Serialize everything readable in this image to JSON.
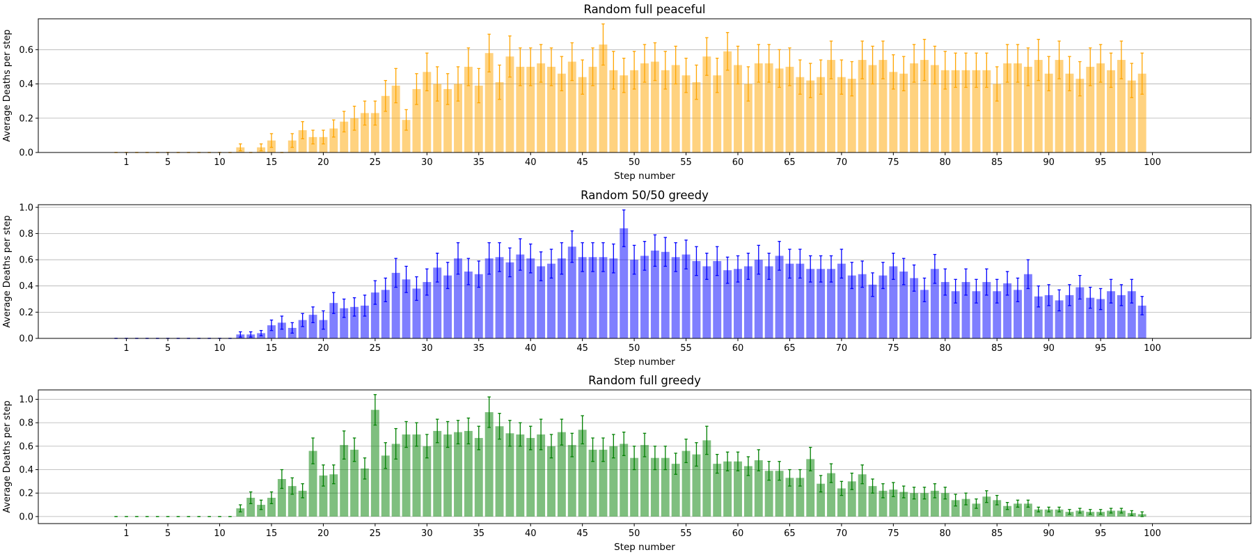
{
  "chart_data": [
    {
      "type": "bar",
      "title": "Random full peaceful",
      "xlabel": "Step number",
      "ylabel": "Average Deaths per step",
      "color": "#ffa500",
      "ylim": [
        0,
        0.78
      ],
      "yticks": [
        0.0,
        0.2,
        0.4,
        0.6
      ],
      "ytick_labels": [
        "0.0",
        "0.2",
        "0.4",
        "0.6"
      ],
      "xlim": [
        -7.5,
        109.5
      ],
      "xticks": [
        1,
        5,
        10,
        15,
        20,
        25,
        30,
        35,
        40,
        45,
        50,
        55,
        60,
        65,
        70,
        75,
        80,
        85,
        90,
        95,
        100
      ],
      "xtick_labels": [
        "1",
        "5",
        "10",
        "15",
        "20",
        "25",
        "30",
        "35",
        "40",
        "45",
        "50",
        "55",
        "60",
        "65",
        "70",
        "75",
        "80",
        "85",
        "90",
        "95",
        "100"
      ],
      "grid": "y",
      "x": [
        0,
        1,
        2,
        3,
        4,
        5,
        6,
        7,
        8,
        9,
        10,
        11,
        12,
        13,
        14,
        15,
        16,
        17,
        18,
        19,
        20,
        21,
        22,
        23,
        24,
        25,
        26,
        27,
        28,
        29,
        30,
        31,
        32,
        33,
        34,
        35,
        36,
        37,
        38,
        39,
        40,
        41,
        42,
        43,
        44,
        45,
        46,
        47,
        48,
        49,
        50,
        51,
        52,
        53,
        54,
        55,
        56,
        57,
        58,
        59,
        60,
        61,
        62,
        63,
        64,
        65,
        66,
        67,
        68,
        69,
        70,
        71,
        72,
        73,
        74,
        75,
        76,
        77,
        78,
        79,
        80,
        81,
        82,
        83,
        84,
        85,
        86,
        87,
        88,
        89,
        90,
        91,
        92,
        93,
        94,
        95,
        96,
        97,
        98,
        99
      ],
      "values": [
        0,
        0,
        0,
        0,
        0,
        0,
        0,
        0,
        0,
        0,
        0,
        0,
        0.03,
        0,
        0.03,
        0.07,
        0,
        0.07,
        0.13,
        0.09,
        0.09,
        0.14,
        0.18,
        0.2,
        0.23,
        0.23,
        0.33,
        0.39,
        0.19,
        0.37,
        0.47,
        0.4,
        0.37,
        0.4,
        0.5,
        0.39,
        0.58,
        0.41,
        0.56,
        0.5,
        0.5,
        0.52,
        0.5,
        0.46,
        0.53,
        0.44,
        0.5,
        0.63,
        0.48,
        0.45,
        0.48,
        0.52,
        0.53,
        0.48,
        0.51,
        0.45,
        0.41,
        0.56,
        0.45,
        0.59,
        0.51,
        0.4,
        0.52,
        0.52,
        0.49,
        0.5,
        0.44,
        0.42,
        0.44,
        0.54,
        0.44,
        0.43,
        0.54,
        0.51,
        0.54,
        0.47,
        0.46,
        0.52,
        0.54,
        0.51,
        0.48,
        0.48,
        0.48,
        0.48,
        0.48,
        0.4,
        0.52,
        0.52,
        0.5,
        0.54,
        0.46,
        0.54,
        0.46,
        0.43,
        0.5,
        0.52,
        0.48,
        0.54,
        0.42,
        0.46
      ],
      "errors": [
        0,
        0,
        0,
        0,
        0,
        0,
        0,
        0,
        0,
        0,
        0,
        0,
        0.02,
        0,
        0.02,
        0.04,
        0,
        0.04,
        0.05,
        0.04,
        0.04,
        0.05,
        0.06,
        0.07,
        0.07,
        0.07,
        0.09,
        0.1,
        0.06,
        0.09,
        0.11,
        0.1,
        0.09,
        0.1,
        0.11,
        0.1,
        0.11,
        0.1,
        0.12,
        0.11,
        0.11,
        0.11,
        0.11,
        0.1,
        0.11,
        0.1,
        0.11,
        0.12,
        0.11,
        0.1,
        0.11,
        0.11,
        0.11,
        0.11,
        0.11,
        0.1,
        0.1,
        0.11,
        0.1,
        0.11,
        0.11,
        0.1,
        0.11,
        0.11,
        0.11,
        0.11,
        0.1,
        0.1,
        0.1,
        0.11,
        0.1,
        0.1,
        0.11,
        0.11,
        0.11,
        0.1,
        0.1,
        0.11,
        0.12,
        0.11,
        0.11,
        0.1,
        0.1,
        0.1,
        0.1,
        0.1,
        0.11,
        0.11,
        0.11,
        0.12,
        0.1,
        0.11,
        0.1,
        0.1,
        0.11,
        0.11,
        0.1,
        0.11,
        0.1,
        0.12
      ]
    },
    {
      "type": "bar",
      "title": "Random 50/50 greedy",
      "xlabel": "Step number",
      "ylabel": "Average Deaths per step",
      "color": "#0000ff",
      "ylim": [
        0,
        1.02
      ],
      "yticks": [
        0.0,
        0.2,
        0.4,
        0.6,
        0.8,
        1.0
      ],
      "ytick_labels": [
        "0.0",
        "0.2",
        "0.4",
        "0.6",
        "0.8",
        "1.0"
      ],
      "xlim": [
        -7.5,
        109.5
      ],
      "xticks": [
        1,
        5,
        10,
        15,
        20,
        25,
        30,
        35,
        40,
        45,
        50,
        55,
        60,
        65,
        70,
        75,
        80,
        85,
        90,
        95,
        100
      ],
      "xtick_labels": [
        "1",
        "5",
        "10",
        "15",
        "20",
        "25",
        "30",
        "35",
        "40",
        "45",
        "50",
        "55",
        "60",
        "65",
        "70",
        "75",
        "80",
        "85",
        "90",
        "95",
        "100"
      ],
      "grid": "y",
      "x": [
        0,
        1,
        2,
        3,
        4,
        5,
        6,
        7,
        8,
        9,
        10,
        11,
        12,
        13,
        14,
        15,
        16,
        17,
        18,
        19,
        20,
        21,
        22,
        23,
        24,
        25,
        26,
        27,
        28,
        29,
        30,
        31,
        32,
        33,
        34,
        35,
        36,
        37,
        38,
        39,
        40,
        41,
        42,
        43,
        44,
        45,
        46,
        47,
        48,
        49,
        50,
        51,
        52,
        53,
        54,
        55,
        56,
        57,
        58,
        59,
        60,
        61,
        62,
        63,
        64,
        65,
        66,
        67,
        68,
        69,
        70,
        71,
        72,
        73,
        74,
        75,
        76,
        77,
        78,
        79,
        80,
        81,
        82,
        83,
        84,
        85,
        86,
        87,
        88,
        89,
        90,
        91,
        92,
        93,
        94,
        95,
        96,
        97,
        98,
        99
      ],
      "values": [
        0,
        0,
        0,
        0,
        0,
        0,
        0,
        0,
        0,
        0,
        0,
        0,
        0.03,
        0.03,
        0.04,
        0.1,
        0.12,
        0.08,
        0.14,
        0.18,
        0.14,
        0.27,
        0.23,
        0.24,
        0.25,
        0.35,
        0.37,
        0.5,
        0.45,
        0.38,
        0.43,
        0.54,
        0.48,
        0.61,
        0.51,
        0.49,
        0.61,
        0.62,
        0.58,
        0.64,
        0.61,
        0.55,
        0.57,
        0.61,
        0.7,
        0.62,
        0.62,
        0.62,
        0.61,
        0.84,
        0.6,
        0.63,
        0.67,
        0.66,
        0.62,
        0.64,
        0.59,
        0.55,
        0.59,
        0.52,
        0.53,
        0.55,
        0.6,
        0.55,
        0.63,
        0.57,
        0.57,
        0.53,
        0.53,
        0.53,
        0.57,
        0.48,
        0.49,
        0.41,
        0.48,
        0.55,
        0.51,
        0.46,
        0.37,
        0.53,
        0.43,
        0.36,
        0.43,
        0.36,
        0.43,
        0.36,
        0.42,
        0.37,
        0.49,
        0.32,
        0.33,
        0.29,
        0.33,
        0.39,
        0.31,
        0.3,
        0.36,
        0.33,
        0.36,
        0.25
      ],
      "errors": [
        0,
        0,
        0,
        0,
        0,
        0,
        0,
        0,
        0,
        0,
        0,
        0,
        0.02,
        0.02,
        0.02,
        0.04,
        0.05,
        0.04,
        0.05,
        0.06,
        0.07,
        0.08,
        0.07,
        0.07,
        0.08,
        0.09,
        0.09,
        0.11,
        0.1,
        0.09,
        0.1,
        0.11,
        0.1,
        0.12,
        0.1,
        0.1,
        0.12,
        0.11,
        0.11,
        0.12,
        0.11,
        0.11,
        0.11,
        0.12,
        0.12,
        0.11,
        0.11,
        0.11,
        0.11,
        0.14,
        0.11,
        0.11,
        0.12,
        0.11,
        0.11,
        0.11,
        0.11,
        0.1,
        0.11,
        0.1,
        0.1,
        0.1,
        0.11,
        0.1,
        0.11,
        0.11,
        0.11,
        0.1,
        0.1,
        0.1,
        0.11,
        0.1,
        0.1,
        0.09,
        0.1,
        0.1,
        0.1,
        0.1,
        0.09,
        0.11,
        0.1,
        0.09,
        0.1,
        0.09,
        0.1,
        0.09,
        0.09,
        0.09,
        0.11,
        0.08,
        0.08,
        0.08,
        0.08,
        0.09,
        0.08,
        0.08,
        0.09,
        0.08,
        0.09,
        0.07
      ]
    },
    {
      "type": "bar",
      "title": "Random full greedy",
      "xlabel": "Step number",
      "ylabel": "Average Deaths per step",
      "color": "#008000",
      "ylim": [
        -0.06,
        1.08
      ],
      "yticks": [
        0.0,
        0.2,
        0.4,
        0.6,
        0.8,
        1.0
      ],
      "ytick_labels": [
        "0.0",
        "0.2",
        "0.4",
        "0.6",
        "0.8",
        "1.0"
      ],
      "xlim": [
        -7.5,
        109.5
      ],
      "xticks": [
        1,
        5,
        10,
        15,
        20,
        25,
        30,
        35,
        40,
        45,
        50,
        55,
        60,
        65,
        70,
        75,
        80,
        85,
        90,
        95,
        100
      ],
      "xtick_labels": [
        "1",
        "5",
        "10",
        "15",
        "20",
        "25",
        "30",
        "35",
        "40",
        "45",
        "50",
        "55",
        "60",
        "65",
        "70",
        "75",
        "80",
        "85",
        "90",
        "95",
        "100"
      ],
      "grid": "y",
      "x": [
        0,
        1,
        2,
        3,
        4,
        5,
        6,
        7,
        8,
        9,
        10,
        11,
        12,
        13,
        14,
        15,
        16,
        17,
        18,
        19,
        20,
        21,
        22,
        23,
        24,
        25,
        26,
        27,
        28,
        29,
        30,
        31,
        32,
        33,
        34,
        35,
        36,
        37,
        38,
        39,
        40,
        41,
        42,
        43,
        44,
        45,
        46,
        47,
        48,
        49,
        50,
        51,
        52,
        53,
        54,
        55,
        56,
        57,
        58,
        59,
        60,
        61,
        62,
        63,
        64,
        65,
        66,
        67,
        68,
        69,
        70,
        71,
        72,
        73,
        74,
        75,
        76,
        77,
        78,
        79,
        80,
        81,
        82,
        83,
        84,
        85,
        86,
        87,
        88,
        89,
        90,
        91,
        92,
        93,
        94,
        95,
        96,
        97,
        98,
        99
      ],
      "values": [
        0,
        0,
        0,
        0,
        0,
        0,
        0,
        0,
        0,
        0,
        0,
        0,
        0.07,
        0.16,
        0.1,
        0.16,
        0.32,
        0.26,
        0.22,
        0.56,
        0.35,
        0.36,
        0.61,
        0.57,
        0.41,
        0.91,
        0.52,
        0.62,
        0.7,
        0.7,
        0.6,
        0.73,
        0.7,
        0.72,
        0.73,
        0.67,
        0.89,
        0.77,
        0.71,
        0.7,
        0.67,
        0.7,
        0.6,
        0.72,
        0.61,
        0.74,
        0.57,
        0.57,
        0.6,
        0.62,
        0.5,
        0.61,
        0.5,
        0.5,
        0.45,
        0.56,
        0.53,
        0.65,
        0.45,
        0.47,
        0.47,
        0.43,
        0.48,
        0.39,
        0.39,
        0.33,
        0.33,
        0.49,
        0.28,
        0.37,
        0.24,
        0.3,
        0.36,
        0.26,
        0.22,
        0.23,
        0.21,
        0.2,
        0.2,
        0.22,
        0.2,
        0.14,
        0.15,
        0.11,
        0.17,
        0.14,
        0.09,
        0.11,
        0.11,
        0.06,
        0.06,
        0.06,
        0.04,
        0.05,
        0.04,
        0.04,
        0.05,
        0.05,
        0.03,
        0.02
      ],
      "errors": [
        0,
        0,
        0,
        0,
        0,
        0,
        0,
        0,
        0,
        0,
        0,
        0,
        0.03,
        0.05,
        0.04,
        0.05,
        0.08,
        0.07,
        0.06,
        0.11,
        0.09,
        0.08,
        0.12,
        0.1,
        0.09,
        0.13,
        0.11,
        0.13,
        0.11,
        0.1,
        0.1,
        0.1,
        0.11,
        0.1,
        0.11,
        0.1,
        0.13,
        0.11,
        0.11,
        0.1,
        0.1,
        0.13,
        0.1,
        0.11,
        0.1,
        0.12,
        0.1,
        0.1,
        0.1,
        0.1,
        0.1,
        0.1,
        0.1,
        0.1,
        0.09,
        0.1,
        0.1,
        0.12,
        0.08,
        0.08,
        0.08,
        0.08,
        0.09,
        0.08,
        0.08,
        0.07,
        0.07,
        0.1,
        0.07,
        0.08,
        0.06,
        0.07,
        0.08,
        0.06,
        0.06,
        0.06,
        0.05,
        0.05,
        0.05,
        0.06,
        0.05,
        0.05,
        0.05,
        0.04,
        0.05,
        0.04,
        0.03,
        0.03,
        0.03,
        0.02,
        0.02,
        0.02,
        0.02,
        0.02,
        0.02,
        0.02,
        0.02,
        0.02,
        0.02,
        0.02
      ]
    }
  ]
}
